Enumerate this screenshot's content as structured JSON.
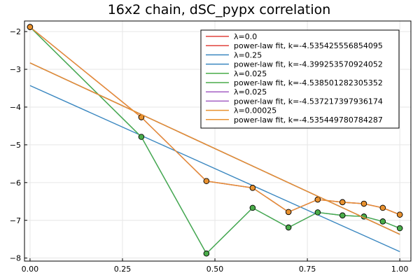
{
  "chart_data": {
    "type": "line",
    "title": "16x2 chain, dSC_pypx correlation",
    "xlabel": "",
    "ylabel": "",
    "xlim": [
      -0.015,
      1.03
    ],
    "ylim": [
      -8.08,
      -1.72
    ],
    "xticks": [
      0.0,
      0.25,
      0.5,
      0.75,
      1.0
    ],
    "xtick_labels": [
      "0.00",
      "0.25",
      "0.50",
      "0.75",
      "1.00"
    ],
    "yticks": [
      -8,
      -7,
      -6,
      -5,
      -4,
      -3,
      -2
    ],
    "ytick_labels": [
      "−8",
      "−7",
      "−6",
      "−5",
      "−4",
      "−3",
      "−2"
    ],
    "grid": true,
    "legend_position": "top-right",
    "series": [
      {
        "name": "λ=0.0",
        "kind": "data",
        "color": "#e0443e",
        "markers": true,
        "x": [
          0.0,
          0.301,
          0.477,
          0.602,
          0.699,
          0.778,
          0.845,
          0.903,
          0.954,
          1.0
        ],
        "y": [
          -1.88,
          -4.27,
          -5.96,
          -6.14,
          -6.78,
          -6.45,
          -6.52,
          -6.56,
          -6.67,
          -6.85
        ]
      },
      {
        "name": "power-law fit, k=-4.535425556854095",
        "kind": "fit",
        "color": "#e0443e",
        "markers": false,
        "x": [
          0.0,
          1.0
        ],
        "y": [
          -2.83,
          -7.37
        ]
      },
      {
        "name": "λ=0.25",
        "kind": "data",
        "color": "#3a87c0",
        "markers": true,
        "x": [
          0.0,
          0.301,
          0.477,
          0.602,
          0.699,
          0.778,
          0.845,
          0.903,
          0.954,
          1.0
        ],
        "y": [
          -1.88,
          -4.79,
          -7.88,
          -6.67,
          -7.19,
          -6.79,
          -6.87,
          -6.9,
          -7.03,
          -7.21
        ]
      },
      {
        "name": "power-law fit, k=-4.399253570924052",
        "kind": "fit",
        "color": "#3a87c0",
        "markers": false,
        "x": [
          0.0,
          1.0
        ],
        "y": [
          -3.43,
          -7.83
        ]
      },
      {
        "name": "λ=0.025",
        "kind": "data",
        "color": "#4aac4a",
        "markers": true,
        "x": [
          0.0,
          0.301,
          0.477,
          0.602,
          0.699,
          0.778,
          0.845,
          0.903,
          0.954,
          1.0
        ],
        "y": [
          -1.88,
          -4.79,
          -7.88,
          -6.67,
          -7.19,
          -6.79,
          -6.87,
          -6.9,
          -7.03,
          -7.21
        ]
      },
      {
        "name": "power-law fit, k=-4.538501282305352",
        "kind": "fit",
        "color": "#4aac4a",
        "markers": false,
        "x": [
          0.0,
          1.0
        ],
        "y": [
          -2.83,
          -7.37
        ]
      },
      {
        "name": "λ=0.025",
        "kind": "data",
        "color": "#a45fc4",
        "markers": true,
        "x": [
          0.0,
          0.301,
          0.477,
          0.602,
          0.699,
          0.778,
          0.845,
          0.903,
          0.954,
          1.0
        ],
        "y": [
          -1.88,
          -4.27,
          -5.96,
          -6.14,
          -6.78,
          -6.45,
          -6.52,
          -6.56,
          -6.67,
          -6.85
        ]
      },
      {
        "name": "power-law fit, k=-4.537217397936174",
        "kind": "fit",
        "color": "#a45fc4",
        "markers": false,
        "x": [
          0.0,
          1.0
        ],
        "y": [
          -2.83,
          -7.37
        ]
      },
      {
        "name": "λ=0.00025",
        "kind": "data",
        "color": "#e8912f",
        "markers": true,
        "x": [
          0.0,
          0.301,
          0.477,
          0.602,
          0.699,
          0.778,
          0.845,
          0.903,
          0.954,
          1.0
        ],
        "y": [
          -1.88,
          -4.27,
          -5.96,
          -6.14,
          -6.78,
          -6.45,
          -6.52,
          -6.56,
          -6.67,
          -6.85
        ]
      },
      {
        "name": "power-law fit, k=-4.535449780784287",
        "kind": "fit",
        "color": "#e8912f",
        "markers": false,
        "x": [
          0.0,
          1.0
        ],
        "y": [
          -2.83,
          -7.37
        ]
      }
    ]
  }
}
